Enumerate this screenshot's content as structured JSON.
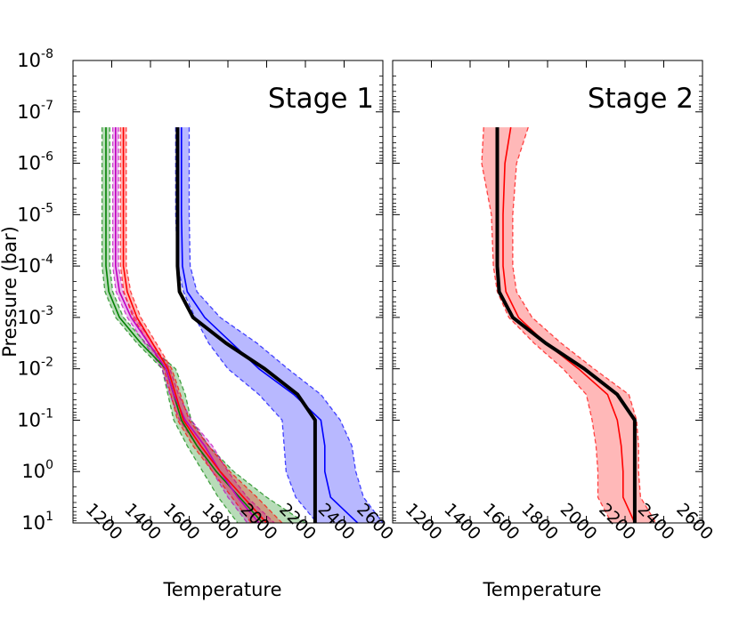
{
  "chart_data": [
    {
      "type": "line",
      "title": "Stage 1",
      "xlabel": "Temperature",
      "ylabel": "Pressure (bar)",
      "xlim": [
        1000,
        2600
      ],
      "ylim_log10": [
        1,
        -8
      ],
      "yscale": "log",
      "x_ticks": [
        1200,
        1400,
        1600,
        1800,
        2000,
        2200,
        2400,
        2600
      ],
      "y_tick_labels": [
        "10^1",
        "10^0",
        "10^-1",
        "10^-2",
        "10^-3",
        "10^-4",
        "10^-5",
        "10^-6",
        "10^-7",
        "10^-8"
      ],
      "y_log10": [
        -6.7,
        -6,
        -5,
        -4,
        -3.5,
        -3,
        -2.5,
        -2,
        -1.5,
        -1,
        -0.5,
        0,
        0.5,
        1
      ],
      "series": [
        {
          "color": "#008000",
          "style": "solid",
          "median": [
            1170,
            1170,
            1170,
            1170,
            1185,
            1240,
            1350,
            1480,
            1520,
            1560,
            1640,
            1740,
            1860,
            1980
          ],
          "lower": [
            1150,
            1150,
            1150,
            1150,
            1165,
            1220,
            1330,
            1460,
            1490,
            1520,
            1590,
            1670,
            1750,
            1850
          ],
          "upper": [
            1190,
            1190,
            1190,
            1190,
            1205,
            1260,
            1375,
            1530,
            1580,
            1610,
            1700,
            1830,
            2000,
            2200
          ]
        },
        {
          "color": "#bf00bf",
          "style": "solid",
          "median": [
            1220,
            1220,
            1220,
            1220,
            1240,
            1300,
            1390,
            1480,
            1520,
            1580,
            1680,
            1760,
            1850,
            1960
          ],
          "lower": [
            1205,
            1205,
            1205,
            1205,
            1222,
            1280,
            1370,
            1460,
            1500,
            1550,
            1640,
            1720,
            1800,
            1900
          ],
          "upper": [
            1235,
            1235,
            1235,
            1235,
            1258,
            1320,
            1410,
            1500,
            1545,
            1610,
            1720,
            1800,
            1900,
            2040
          ]
        },
        {
          "color": "#ff0000",
          "style": "solid",
          "median": [
            1260,
            1260,
            1260,
            1260,
            1280,
            1330,
            1410,
            1490,
            1530,
            1570,
            1660,
            1760,
            1880,
            2000
          ],
          "lower": [
            1245,
            1245,
            1245,
            1245,
            1262,
            1310,
            1390,
            1470,
            1505,
            1540,
            1620,
            1720,
            1820,
            1920
          ],
          "upper": [
            1275,
            1275,
            1275,
            1275,
            1298,
            1350,
            1430,
            1510,
            1555,
            1600,
            1700,
            1810,
            1950,
            2080
          ]
        },
        {
          "color": "#0000ff",
          "style": "solid",
          "median": [
            1560,
            1560,
            1560,
            1565,
            1590,
            1680,
            1820,
            1960,
            2140,
            2280,
            2300,
            2300,
            2330,
            2470
          ],
          "lower": [
            1530,
            1530,
            1530,
            1540,
            1570,
            1630,
            1700,
            1800,
            1960,
            2080,
            2090,
            2100,
            2150,
            2260
          ],
          "upper": [
            1600,
            1600,
            1600,
            1605,
            1640,
            1760,
            1950,
            2110,
            2280,
            2380,
            2440,
            2460,
            2500,
            2600
          ]
        },
        {
          "color": "#000000",
          "style": "thick",
          "median": [
            1540,
            1540,
            1540,
            1540,
            1550,
            1620,
            1790,
            1990,
            2160,
            2250,
            2250,
            2250,
            2250,
            2250
          ]
        }
      ]
    },
    {
      "type": "line",
      "title": "Stage 2",
      "xlabel": "Temperature",
      "xlim": [
        1000,
        2600
      ],
      "ylim_log10": [
        1,
        -8
      ],
      "yscale": "log",
      "x_ticks": [
        1200,
        1400,
        1600,
        1800,
        2000,
        2200,
        2400,
        2600
      ],
      "y_log10": [
        -6.7,
        -6,
        -5,
        -4,
        -3.5,
        -3,
        -2.5,
        -2,
        -1.5,
        -1,
        -0.5,
        0,
        0.5,
        1
      ],
      "series": [
        {
          "color": "#ff0000",
          "style": "solid",
          "median": [
            1610,
            1580,
            1570,
            1570,
            1585,
            1650,
            1790,
            1960,
            2110,
            2160,
            2180,
            2190,
            2190,
            2250
          ],
          "lower": [
            1470,
            1460,
            1510,
            1520,
            1540,
            1600,
            1730,
            1880,
            2000,
            2030,
            2050,
            2060,
            2060,
            2130
          ],
          "upper": [
            1700,
            1640,
            1620,
            1620,
            1640,
            1720,
            1870,
            2040,
            2220,
            2260,
            2270,
            2270,
            2280,
            2360
          ]
        },
        {
          "color": "#000000",
          "style": "thick",
          "median": [
            1540,
            1540,
            1540,
            1540,
            1550,
            1620,
            1790,
            1990,
            2160,
            2250,
            2250,
            2250,
            2250,
            2250
          ]
        }
      ]
    }
  ]
}
